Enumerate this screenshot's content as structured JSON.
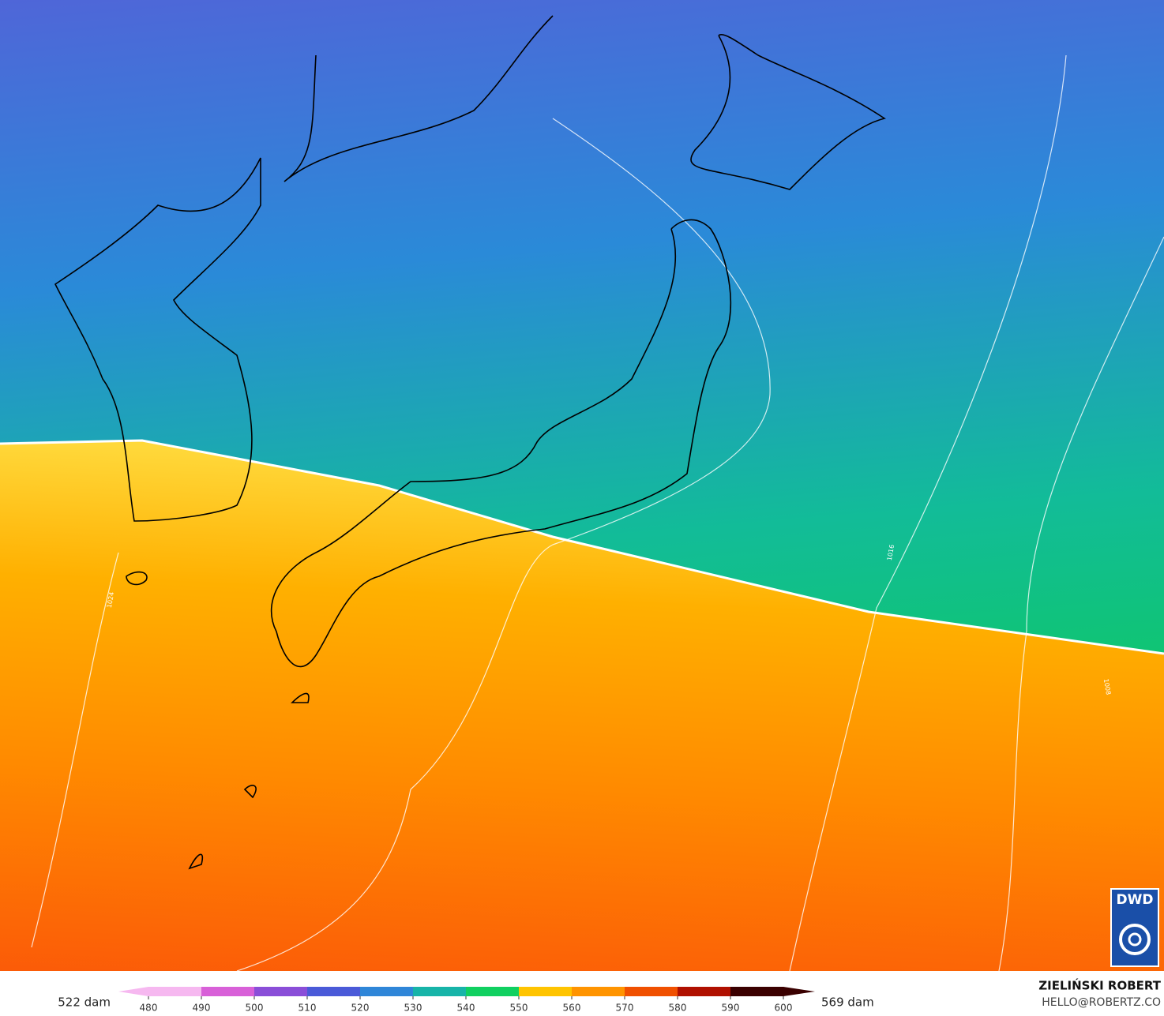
{
  "map": {
    "logo": "DWD",
    "contour_labels": [
      "1024",
      "1016",
      "1008"
    ]
  },
  "legend": {
    "min_label": "522 dam",
    "max_label": "569 dam",
    "ticks": [
      480,
      490,
      500,
      510,
      520,
      530,
      540,
      550,
      560,
      570,
      580,
      590,
      600
    ],
    "colors": [
      "#f6b8f0",
      "#d860d8",
      "#8a4ed8",
      "#4a5ad8",
      "#2f86d8",
      "#17b4a8",
      "#10d060",
      "#ffc400",
      "#ff9400",
      "#f05000",
      "#b01000",
      "#3a0000"
    ]
  },
  "credit": {
    "name": "ZIELIŃSKI ROBERT",
    "email": "HELLO@ROBERTZ.CO"
  }
}
